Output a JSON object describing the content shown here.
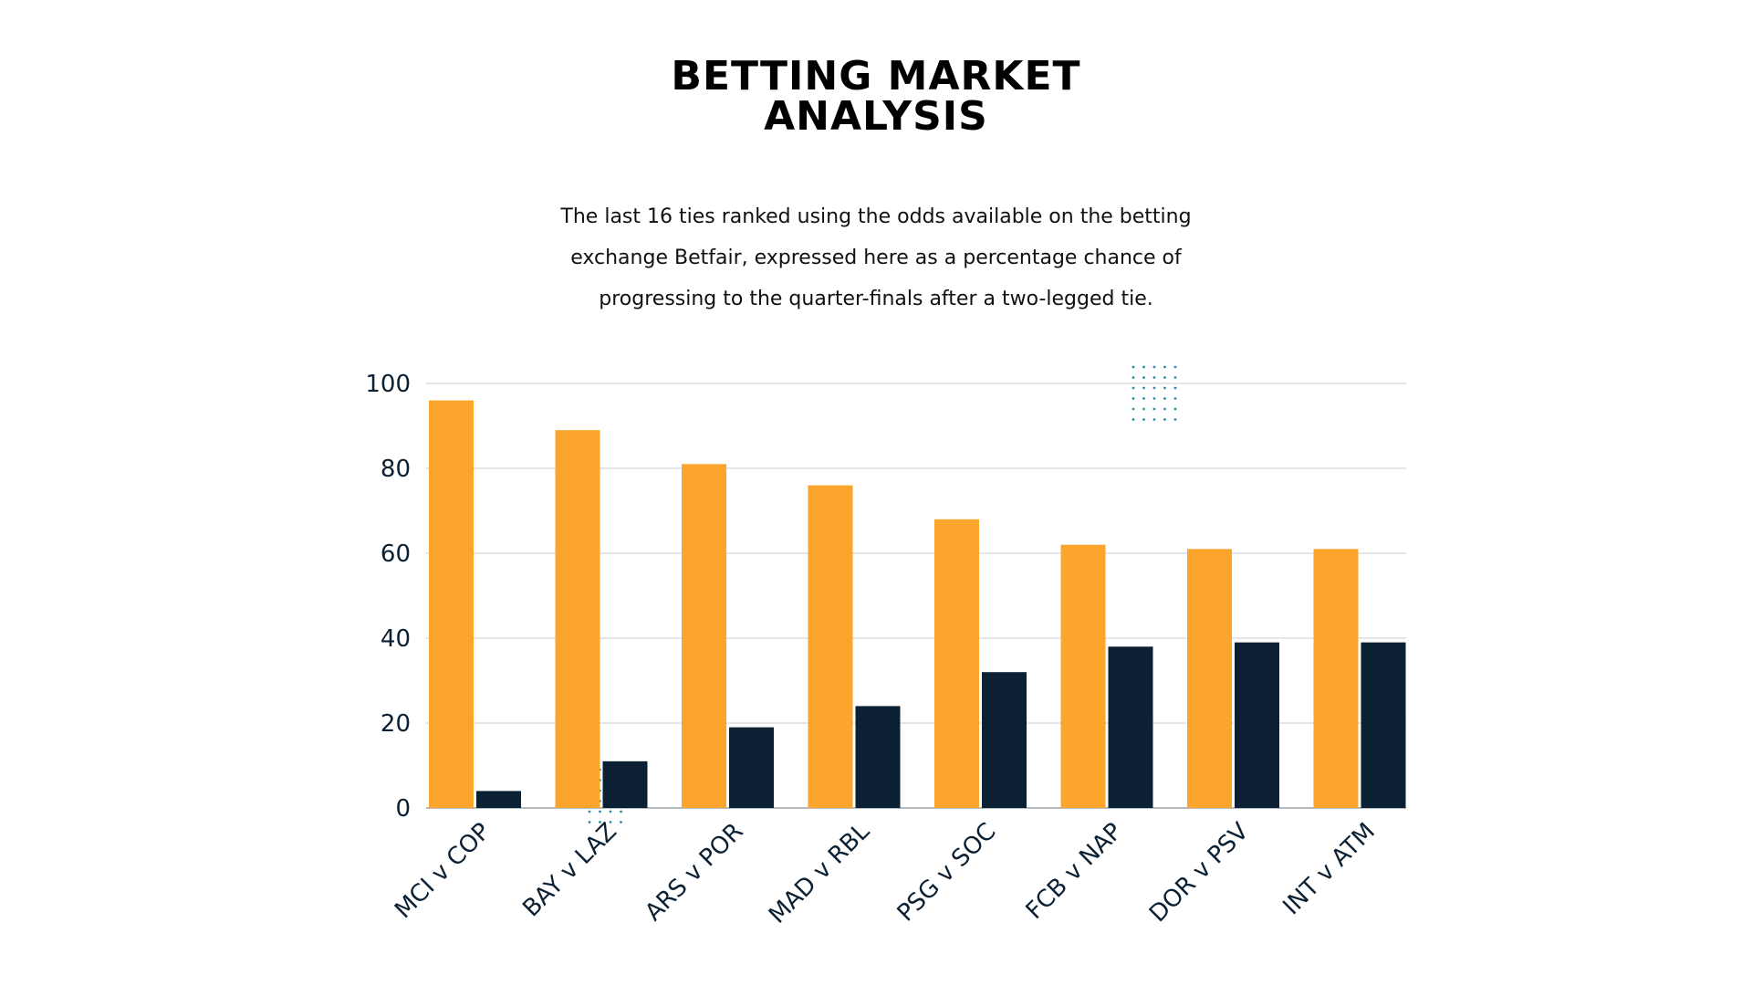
{
  "header": {
    "title_lines": [
      "BETTING MARKET",
      "ANALYSIS"
    ],
    "subtitle_lines": [
      "The last 16 ties ranked using the odds available on the betting",
      "exchange Betfair, expressed here as a percentage chance of",
      "progressing to the quarter-finals after a two-legged tie."
    ]
  },
  "colors": {
    "favourite": "#FBA52C",
    "underdog": "#0B2033",
    "grid": "#CCCCCC",
    "axis_text": "#0B2033",
    "dots": "#2A8FA6"
  },
  "chart_data": {
    "type": "bar",
    "categories": [
      "MCI v COP",
      "BAY v LAZ",
      "ARS v POR",
      "MAD v RBL",
      "PSG v SOC",
      "FCB v NAP",
      "DOR v PSV",
      "INT v ATM"
    ],
    "series": [
      {
        "values": [
          96,
          89,
          81,
          76,
          68,
          62,
          61,
          61
        ]
      },
      {
        "values": [
          4,
          11,
          19,
          24,
          32,
          38,
          39,
          39
        ]
      }
    ],
    "yticks": [
      "0",
      "20",
      "40",
      "60",
      "80",
      "100"
    ],
    "ylim": [
      0,
      100
    ],
    "grid": true,
    "legend": "none"
  }
}
